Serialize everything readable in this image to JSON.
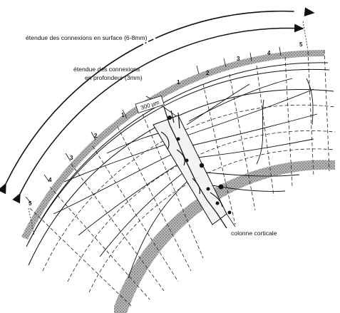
{
  "labels": {
    "surface_extent": "étendue des connexions en surface (6-8mm)",
    "depth_extent_line1": "étendue des connexions",
    "depth_extent_line2": "en profondeur (3mm)",
    "column": "colonne corticale",
    "scale_bar": "300 µm"
  },
  "column_numbers_right": [
    "1",
    "2",
    "3",
    "4",
    "5"
  ],
  "column_numbers_left": [
    "1",
    "2",
    "3",
    "4",
    "5"
  ],
  "colors": {
    "ink": "#111111",
    "surface_stipple": "#8a8a8a",
    "white_matter_stipple": "#6f6f6f"
  }
}
